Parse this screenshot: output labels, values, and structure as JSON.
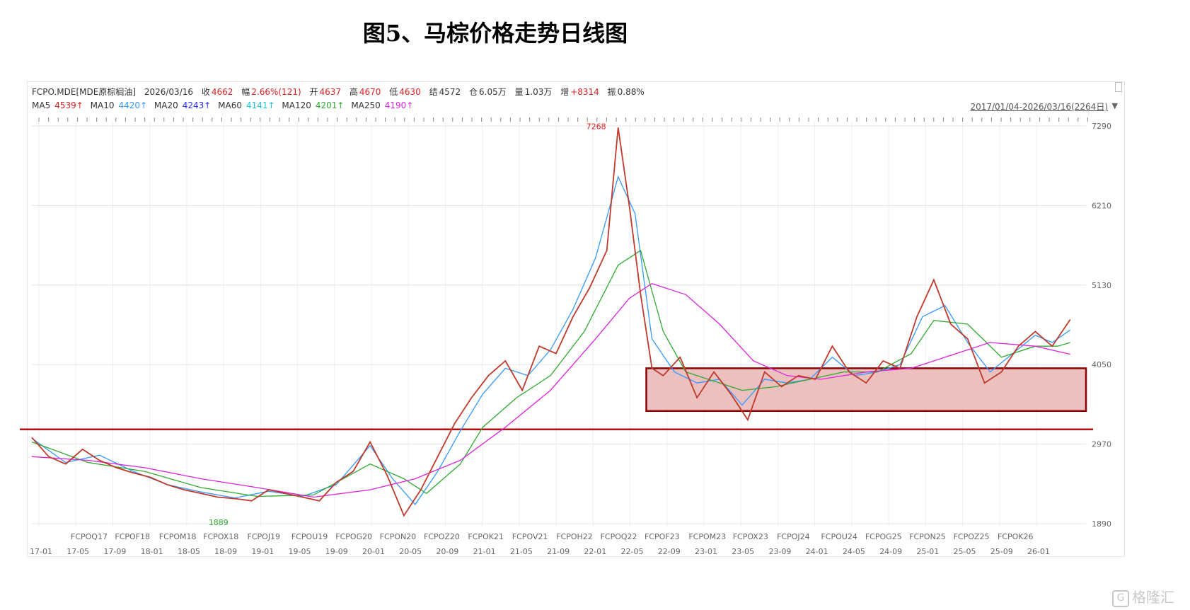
{
  "figure_title": "图5、马棕价格走势日线图",
  "header": {
    "symbol": "FCPO.MDE[MDE原棕榈油]",
    "date": "2026/03/16",
    "close_label": "收",
    "close_value": "4662",
    "change_label": "幅",
    "change_value": "2.66%(121)",
    "open_label": "开",
    "open_value": "4637",
    "high_label": "高",
    "high_value": "4670",
    "low_label": "低",
    "low_value": "4630",
    "settle_label": "结",
    "settle_value": "4572",
    "oi_label": "仓",
    "oi_value": "6.05万",
    "vol_label": "量",
    "vol_value": "1.03万",
    "inc_label": "增",
    "inc_value": "+8314",
    "amp_label": "振",
    "amp_value": "0.88%"
  },
  "ma_row": [
    {
      "label": "MA5",
      "value": "4539↑",
      "color": "#e02020"
    },
    {
      "label": "MA10",
      "value": "4420↑",
      "color": "#3399ff"
    },
    {
      "label": "MA20",
      "value": "4243↑",
      "color": "#2a2aff"
    },
    {
      "label": "MA60",
      "value": "4141↑",
      "color": "#19c5d2"
    },
    {
      "label": "MA120",
      "value": "4201↑",
      "color": "#2eaa2e"
    },
    {
      "label": "MA250",
      "value": "4190↑",
      "color": "#dd22dd"
    }
  ],
  "date_range": "2017/01/04-2026/03/16(2264日)",
  "watermark": "格隆汇",
  "watermark_icon": "G",
  "chart_data": {
    "type": "line",
    "ylim": [
      1890,
      7290
    ],
    "y_ticks": [
      "7290",
      "6210",
      "5130",
      "4050",
      "2970",
      "1890"
    ],
    "x_dates": [
      "17-01",
      "17-05",
      "17-09",
      "18-01",
      "18-05",
      "18-09",
      "19-01",
      "19-05",
      "19-09",
      "20-01",
      "20-05",
      "20-09",
      "21-01",
      "21-05",
      "21-09",
      "22-01",
      "22-05",
      "22-09",
      "23-01",
      "23-05",
      "23-09",
      "24-01",
      "24-05",
      "24-09",
      "25-01",
      "25-05",
      "25-09",
      "26-01"
    ],
    "contract_labels": [
      "FCPOQ17",
      "FCPOF18",
      "FCPOM18",
      "FCPOX18",
      "FCPOJ19",
      "FCPOU19",
      "FCPOG20",
      "FCPON20",
      "FCPOZ20",
      "FCPOK21",
      "FCPOV21",
      "FCPOH22",
      "FCPOQ22",
      "FCPOF23",
      "FCPOM23",
      "FCPOX23",
      "FCPOJ24",
      "FCPOU24",
      "FCPOG25",
      "FCPON25",
      "FCPOZ25",
      "FCPOK26"
    ],
    "annotations": [
      {
        "text": "7268",
        "x": 2022.2,
        "y": 7268,
        "color": "#e02020"
      },
      {
        "text": "1889",
        "x": 2018.85,
        "y": 1889,
        "color": "#2eaa2e"
      }
    ],
    "price": {
      "color": "#c0392b",
      "x": [
        2017.0,
        2017.15,
        2017.3,
        2017.45,
        2017.6,
        2017.75,
        2017.9,
        2018.05,
        2018.2,
        2018.35,
        2018.5,
        2018.65,
        2018.8,
        2018.95,
        2019.1,
        2019.25,
        2019.4,
        2019.55,
        2019.7,
        2019.85,
        2020.0,
        2020.15,
        2020.3,
        2020.45,
        2020.6,
        2020.75,
        2020.9,
        2021.05,
        2021.2,
        2021.35,
        2021.5,
        2021.65,
        2021.8,
        2021.95,
        2022.1,
        2022.2,
        2022.3,
        2022.4,
        2022.5,
        2022.6,
        2022.75,
        2022.9,
        2023.05,
        2023.2,
        2023.35,
        2023.5,
        2023.65,
        2023.8,
        2023.95,
        2024.1,
        2024.25,
        2024.4,
        2024.55,
        2024.7,
        2024.85,
        2025.0,
        2025.15,
        2025.3,
        2025.45,
        2025.6,
        2025.75,
        2025.9,
        2026.05,
        2026.21
      ],
      "y": [
        3060,
        2800,
        2700,
        2900,
        2750,
        2650,
        2580,
        2520,
        2420,
        2350,
        2300,
        2250,
        2230,
        2200,
        2350,
        2300,
        2250,
        2200,
        2450,
        2600,
        3000,
        2550,
        2000,
        2350,
        2800,
        3250,
        3600,
        3900,
        4100,
        3700,
        4300,
        4200,
        4700,
        5100,
        5600,
        7268,
        6200,
        5000,
        4000,
        3900,
        4150,
        3600,
        3950,
        3650,
        3300,
        3950,
        3750,
        3900,
        3850,
        4300,
        3950,
        3800,
        4100,
        4000,
        4700,
        5200,
        4600,
        4400,
        3800,
        3950,
        4300,
        4500,
        4300,
        4662
      ]
    },
    "series": [
      {
        "name": "MA5",
        "color": "#3399ff",
        "x": [
          2017.0,
          2017.3,
          2017.6,
          2017.9,
          2018.2,
          2018.5,
          2018.8,
          2019.1,
          2019.4,
          2019.7,
          2020.0,
          2020.2,
          2020.4,
          2020.6,
          2020.8,
          2021.0,
          2021.2,
          2021.4,
          2021.6,
          2021.8,
          2022.0,
          2022.2,
          2022.35,
          2022.5,
          2022.7,
          2022.9,
          2023.1,
          2023.3,
          2023.5,
          2023.7,
          2023.9,
          2024.1,
          2024.3,
          2024.5,
          2024.7,
          2024.9,
          2025.1,
          2025.3,
          2025.5,
          2025.7,
          2025.9,
          2026.05,
          2026.21
        ],
        "y": [
          3050,
          2720,
          2820,
          2600,
          2420,
          2320,
          2240,
          2330,
          2260,
          2420,
          2950,
          2500,
          2150,
          2600,
          3150,
          3650,
          4000,
          3900,
          4250,
          4800,
          5500,
          6600,
          6100,
          4400,
          3950,
          3800,
          3850,
          3500,
          3850,
          3800,
          3850,
          4150,
          3900,
          3950,
          4050,
          4700,
          4850,
          4350,
          3950,
          4200,
          4450,
          4350,
          4520
        ]
      },
      {
        "name": "MA20",
        "color": "#2eaa2e",
        "x": [
          2017.0,
          2017.5,
          2018.0,
          2018.5,
          2019.0,
          2019.5,
          2020.0,
          2020.3,
          2020.5,
          2020.8,
          2021.0,
          2021.3,
          2021.6,
          2021.9,
          2022.2,
          2022.4,
          2022.6,
          2022.8,
          2023.0,
          2023.3,
          2023.6,
          2023.9,
          2024.2,
          2024.5,
          2024.8,
          2025.0,
          2025.3,
          2025.6,
          2025.9,
          2026.1,
          2026.21
        ],
        "y": [
          3000,
          2720,
          2600,
          2380,
          2260,
          2280,
          2700,
          2500,
          2300,
          2700,
          3200,
          3600,
          3900,
          4500,
          5400,
          5600,
          4500,
          3950,
          3850,
          3700,
          3750,
          3850,
          3950,
          3950,
          4200,
          4650,
          4600,
          4150,
          4300,
          4300,
          4350
        ]
      },
      {
        "name": "MA250",
        "color": "#dd22dd",
        "x": [
          2017.0,
          2017.5,
          2018.0,
          2018.5,
          2019.0,
          2019.5,
          2020.0,
          2020.4,
          2020.8,
          2021.2,
          2021.6,
          2022.0,
          2022.3,
          2022.5,
          2022.8,
          2023.1,
          2023.4,
          2023.7,
          2024.0,
          2024.4,
          2024.8,
          2025.1,
          2025.5,
          2025.9,
          2026.21
        ],
        "y": [
          2800,
          2750,
          2650,
          2500,
          2380,
          2250,
          2350,
          2500,
          2750,
          3200,
          3700,
          4400,
          4950,
          5150,
          5000,
          4600,
          4100,
          3900,
          3850,
          3950,
          4000,
          4150,
          4350,
          4300,
          4190
        ]
      }
    ],
    "support_line": {
      "y": 3170,
      "color": "#b01010"
    },
    "box": {
      "x0": 2022.45,
      "x1": 2026.35,
      "y0": 3420,
      "y1": 4000,
      "fill": "#e8b0b0",
      "stroke": "#8b0000"
    }
  }
}
